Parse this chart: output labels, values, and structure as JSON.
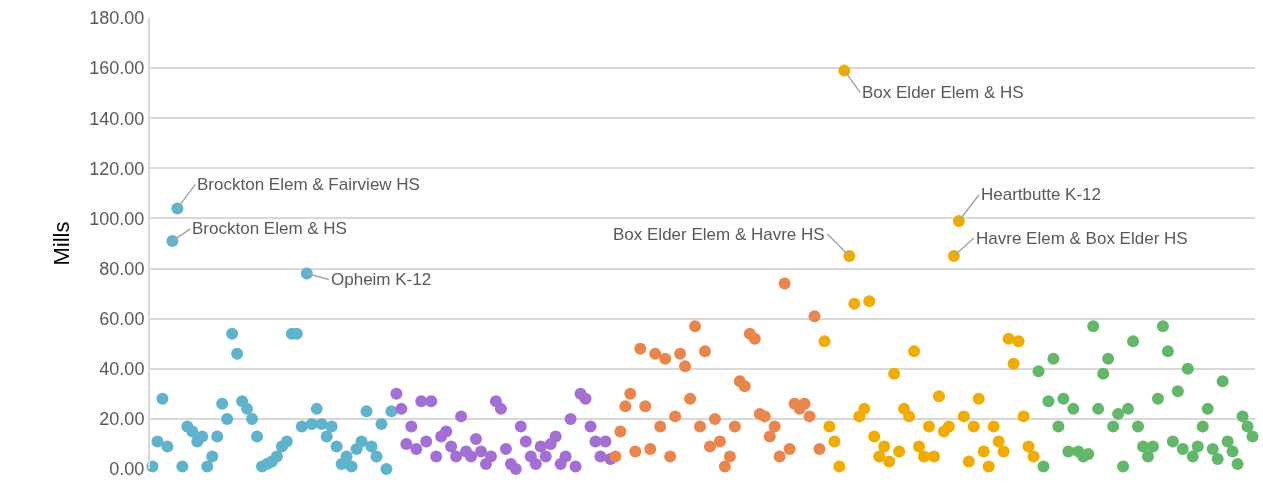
{
  "chart_data": {
    "type": "scatter",
    "ylabel": "Mills",
    "marker": "circle",
    "grid": "y",
    "legend": false,
    "tick_labels": "y",
    "ylim": [
      0,
      180
    ],
    "yticks": [
      {
        "value": 0,
        "label": "0.00"
      },
      {
        "value": 20,
        "label": "20.00"
      },
      {
        "value": 40,
        "label": "40.00"
      },
      {
        "value": 60,
        "label": "60.00"
      },
      {
        "value": 80,
        "label": "80.00"
      },
      {
        "value": 100,
        "label": "100.00"
      },
      {
        "value": 120,
        "label": "120.00"
      },
      {
        "value": 140,
        "label": "140.00"
      },
      {
        "value": 160,
        "label": "160.00"
      },
      {
        "value": 180,
        "label": "180.00"
      }
    ],
    "categories": [
      null,
      null,
      null,
      null,
      null,
      null,
      null,
      null,
      null,
      null,
      null,
      null,
      null,
      null,
      null,
      null,
      null,
      null,
      null,
      null,
      null,
      null,
      null,
      null,
      null,
      null,
      null,
      null,
      null,
      null,
      null,
      null,
      null,
      null,
      null,
      null,
      null,
      null,
      null,
      null,
      null,
      null,
      null,
      null,
      null,
      null,
      null,
      null,
      null,
      null,
      null,
      null,
      null,
      null,
      null,
      null,
      null,
      null,
      null,
      null,
      null,
      null,
      null,
      null,
      null,
      null,
      null,
      null,
      null,
      null,
      null,
      null,
      null,
      null,
      null,
      null,
      null,
      null,
      null,
      null,
      null,
      null,
      null,
      null,
      null,
      null,
      null,
      null,
      null,
      null,
      null,
      null,
      null,
      null,
      null,
      null,
      null,
      null,
      null,
      null,
      null,
      null,
      null,
      null,
      null,
      null,
      null,
      null,
      null,
      null,
      null,
      null,
      null,
      null,
      null,
      null,
      null,
      null,
      null,
      null,
      null,
      null,
      null,
      null,
      null,
      null,
      null,
      null,
      null,
      null,
      null,
      null,
      null,
      null,
      null,
      null,
      null,
      null,
      null,
      null,
      null,
      null,
      null,
      null,
      null,
      null,
      null,
      null,
      null,
      null,
      null,
      null,
      null,
      null,
      null,
      null,
      null,
      null,
      null,
      null,
      null,
      null,
      null,
      null,
      null,
      null,
      null,
      null,
      null,
      null,
      null,
      null,
      null,
      null,
      null,
      null,
      null,
      null,
      null,
      null,
      null,
      null,
      null,
      null,
      null,
      null,
      null,
      null,
      null,
      null,
      null,
      null,
      null,
      null,
      null,
      null,
      null,
      null,
      null,
      null,
      null,
      null,
      null,
      null,
      null,
      null,
      null,
      null,
      null,
      null,
      null,
      null,
      null,
      null,
      null,
      null,
      null,
      null,
      null,
      null,
      null,
      null
    ],
    "series": [
      {
        "color": "#5fb4cb",
        "values": [
          1,
          11,
          28,
          9,
          91,
          104,
          1,
          17,
          15,
          11,
          13,
          1,
          5,
          13,
          26,
          20,
          54,
          46,
          27,
          24,
          20,
          13,
          1,
          2,
          3,
          5,
          9,
          11,
          54,
          54,
          17,
          78,
          18,
          24,
          18,
          13,
          17,
          9,
          2,
          5,
          1,
          8,
          11,
          23,
          9,
          5,
          18,
          0,
          23,
          null,
          null,
          null,
          null,
          null,
          null,
          null,
          null,
          null,
          null,
          null,
          null,
          null,
          null,
          null,
          null,
          null,
          null,
          null,
          null,
          null,
          null,
          null,
          null,
          null,
          null,
          null,
          null,
          null,
          null,
          null,
          null,
          null,
          null,
          null,
          null,
          null,
          null,
          null,
          null,
          null,
          null,
          null,
          null,
          null,
          null,
          null,
          null,
          null,
          null,
          null,
          null,
          null,
          null,
          null,
          null,
          null,
          null,
          null,
          null,
          null,
          null,
          null,
          null,
          null,
          null,
          null,
          null,
          null,
          null,
          null,
          null,
          null,
          null,
          null,
          null,
          null,
          null,
          null,
          null,
          null,
          null,
          null,
          null,
          null,
          null,
          null,
          null,
          null,
          null,
          null,
          null,
          null,
          null,
          null,
          null,
          null,
          null,
          null,
          null,
          null,
          null,
          null,
          null,
          null,
          null,
          null,
          null,
          null,
          null,
          null,
          null,
          null,
          null,
          null,
          null,
          null,
          null,
          null,
          null,
          null,
          null,
          null,
          null,
          null,
          null,
          null,
          null,
          null,
          null,
          null,
          null,
          null,
          null,
          null,
          null,
          null,
          null,
          null,
          null,
          null,
          null,
          null,
          null,
          null,
          null,
          null,
          null,
          null,
          null,
          null,
          null,
          null,
          null,
          null,
          null,
          null,
          null,
          null,
          null,
          null,
          null,
          null,
          null,
          null,
          null,
          null,
          null,
          null,
          null,
          null,
          null,
          null
        ],
        "value_labels": [
          null,
          null,
          null,
          null,
          "Brockton Elem & HS",
          "Brockton Elem & Fairview HS",
          null,
          null,
          null,
          null,
          null,
          null,
          null,
          null,
          null,
          null,
          null,
          null,
          null,
          null,
          null,
          null,
          null,
          null,
          null,
          null,
          null,
          null,
          null,
          null,
          null,
          "Opheim K-12",
          null,
          null,
          null,
          null,
          null,
          null,
          null,
          null,
          null,
          null,
          null,
          null,
          null,
          null,
          null,
          null,
          null,
          null,
          null,
          null,
          null,
          null,
          null,
          null,
          null,
          null,
          null,
          null,
          null,
          null,
          null,
          null,
          null,
          null,
          null,
          null,
          null,
          null,
          null,
          null,
          null,
          null,
          null,
          null,
          null,
          null,
          null,
          null,
          null,
          null,
          null,
          null,
          null,
          null,
          null,
          null,
          null,
          null,
          null,
          null,
          null,
          null,
          null,
          null,
          null,
          null,
          null,
          null,
          null,
          null,
          null,
          null,
          null,
          null,
          null,
          null,
          null,
          null,
          null,
          null,
          null,
          null,
          null,
          null,
          null,
          null,
          null,
          null,
          null,
          null,
          null,
          null,
          null,
          null,
          null,
          null,
          null,
          null,
          null,
          null,
          null,
          null,
          null,
          null,
          null,
          null,
          null,
          null,
          null,
          null,
          null,
          null,
          null,
          null,
          null,
          null,
          null,
          null,
          null,
          null,
          null,
          null,
          null,
          null,
          null,
          null,
          null,
          null,
          null,
          null,
          null,
          null,
          null,
          null,
          null,
          null,
          null,
          null,
          null,
          null,
          null,
          null,
          null,
          null,
          null,
          null,
          null,
          null,
          null,
          null,
          null,
          null,
          null,
          null,
          null,
          null,
          null,
          null,
          null,
          null,
          null,
          null,
          null,
          null,
          null,
          null,
          null,
          null,
          null,
          null,
          null,
          null,
          null,
          null,
          null,
          null,
          null,
          null,
          null,
          null,
          null,
          null,
          null,
          null,
          null,
          null,
          null,
          null,
          null,
          null
        ]
      },
      {
        "color": "#a46fd4",
        "values": [
          null,
          null,
          null,
          null,
          null,
          null,
          null,
          null,
          null,
          null,
          null,
          null,
          null,
          null,
          null,
          null,
          null,
          null,
          null,
          null,
          null,
          null,
          null,
          null,
          null,
          null,
          null,
          null,
          null,
          null,
          null,
          null,
          null,
          null,
          null,
          null,
          null,
          null,
          null,
          null,
          null,
          null,
          null,
          null,
          null,
          null,
          null,
          null,
          null,
          30,
          24,
          10,
          17,
          8,
          27,
          11,
          27,
          5,
          13,
          15,
          9,
          5,
          21,
          7,
          5,
          12,
          7,
          2,
          5,
          27,
          24,
          8,
          2,
          0,
          17,
          11,
          5,
          2,
          9,
          5,
          10,
          13,
          2,
          5,
          20,
          1,
          30,
          28,
          17,
          11,
          5,
          11,
          4,
          null,
          null,
          null,
          null,
          null,
          null,
          null,
          null,
          null,
          null,
          null,
          null,
          null,
          null,
          null,
          null,
          null,
          null,
          null,
          null,
          null,
          null,
          null,
          null,
          null,
          null,
          null,
          null,
          null,
          null,
          null,
          null,
          null,
          null,
          null,
          null,
          null,
          null,
          null,
          null,
          null,
          null,
          null,
          null,
          null,
          null,
          null,
          null,
          null,
          null,
          null,
          null,
          null,
          null,
          null,
          null,
          null,
          null,
          null,
          null,
          null,
          null,
          null,
          null,
          null,
          null,
          null,
          null,
          null,
          null,
          null,
          null,
          null,
          null,
          null,
          null,
          null,
          null,
          null,
          null,
          null,
          null,
          null,
          null,
          null,
          null,
          null,
          null,
          null,
          null,
          null,
          null,
          null,
          null,
          null,
          null,
          null,
          null,
          null,
          null,
          null,
          null,
          null,
          null,
          null,
          null,
          null,
          null,
          null,
          null,
          null,
          null,
          null,
          null,
          null,
          null,
          null,
          null,
          null,
          null,
          null,
          null,
          null,
          null,
          null,
          null,
          null,
          null,
          null
        ]
      },
      {
        "color": "#e8864e",
        "values": [
          null,
          null,
          null,
          null,
          null,
          null,
          null,
          null,
          null,
          null,
          null,
          null,
          null,
          null,
          null,
          null,
          null,
          null,
          null,
          null,
          null,
          null,
          null,
          null,
          null,
          null,
          null,
          null,
          null,
          null,
          null,
          null,
          null,
          null,
          null,
          null,
          null,
          null,
          null,
          null,
          null,
          null,
          null,
          null,
          null,
          null,
          null,
          null,
          null,
          null,
          null,
          null,
          null,
          null,
          null,
          null,
          null,
          null,
          null,
          null,
          null,
          null,
          null,
          null,
          null,
          null,
          null,
          null,
          null,
          null,
          null,
          null,
          null,
          null,
          null,
          null,
          null,
          null,
          null,
          null,
          null,
          null,
          null,
          null,
          null,
          null,
          null,
          null,
          null,
          null,
          null,
          null,
          null,
          5,
          15,
          25,
          30,
          7,
          48,
          25,
          8,
          46,
          17,
          44,
          5,
          21,
          46,
          41,
          28,
          57,
          17,
          47,
          9,
          20,
          11,
          1,
          5,
          17,
          35,
          33,
          54,
          52,
          22,
          21,
          13,
          17,
          5,
          74,
          8,
          26,
          24,
          26,
          21,
          61,
          8,
          null,
          null,
          null,
          null,
          null,
          null,
          null,
          null,
          null,
          null,
          null,
          null,
          null,
          null,
          null,
          null,
          null,
          null,
          null,
          null,
          null,
          null,
          null,
          null,
          null,
          null,
          null,
          null,
          null,
          null,
          null,
          null,
          null,
          null,
          null,
          null,
          null,
          null,
          null,
          null,
          null,
          null,
          null,
          null,
          null,
          null,
          null,
          null,
          null,
          null,
          null,
          null,
          null,
          null,
          null,
          null,
          null,
          null,
          null,
          null,
          null,
          null,
          null,
          null,
          null,
          null,
          null,
          null,
          null,
          null,
          null,
          null,
          null,
          null,
          null,
          null,
          null,
          null,
          null,
          null,
          null,
          null,
          null,
          null,
          null,
          null,
          null
        ]
      },
      {
        "color": "#f0ad00",
        "values": [
          null,
          null,
          null,
          null,
          null,
          null,
          null,
          null,
          null,
          null,
          null,
          null,
          null,
          null,
          null,
          null,
          null,
          null,
          null,
          null,
          null,
          null,
          null,
          null,
          null,
          null,
          null,
          null,
          null,
          null,
          null,
          null,
          null,
          null,
          null,
          null,
          null,
          null,
          null,
          null,
          null,
          null,
          null,
          null,
          null,
          null,
          null,
          null,
          null,
          null,
          null,
          null,
          null,
          null,
          null,
          null,
          null,
          null,
          null,
          null,
          null,
          null,
          null,
          null,
          null,
          null,
          null,
          null,
          null,
          null,
          null,
          null,
          null,
          null,
          null,
          null,
          null,
          null,
          null,
          null,
          null,
          null,
          null,
          null,
          null,
          null,
          null,
          null,
          null,
          null,
          null,
          null,
          null,
          null,
          null,
          null,
          null,
          null,
          null,
          null,
          null,
          null,
          null,
          null,
          null,
          null,
          null,
          null,
          null,
          null,
          null,
          null,
          null,
          null,
          null,
          null,
          null,
          null,
          null,
          null,
          null,
          null,
          null,
          null,
          null,
          null,
          null,
          null,
          null,
          null,
          null,
          null,
          null,
          null,
          null,
          51,
          17,
          11,
          1,
          159,
          85,
          66,
          21,
          24,
          67,
          13,
          5,
          9,
          3,
          38,
          7,
          24,
          21,
          47,
          9,
          5,
          17,
          5,
          29,
          15,
          17,
          85,
          99,
          21,
          3,
          17,
          28,
          7,
          1,
          17,
          11,
          7,
          52,
          42,
          51,
          21,
          9,
          5,
          null,
          null,
          null,
          null,
          null,
          null,
          null,
          null,
          null,
          null,
          null,
          null,
          null,
          null,
          null,
          null,
          null,
          null,
          null,
          null,
          null,
          null,
          null,
          null,
          null,
          null,
          null,
          null,
          null,
          null,
          null,
          null,
          null,
          null,
          null,
          null,
          null,
          null,
          null,
          null,
          null,
          null,
          null,
          null
        ],
        "value_labels": [
          null,
          null,
          null,
          null,
          null,
          null,
          null,
          null,
          null,
          null,
          null,
          null,
          null,
          null,
          null,
          null,
          null,
          null,
          null,
          null,
          null,
          null,
          null,
          null,
          null,
          null,
          null,
          null,
          null,
          null,
          null,
          null,
          null,
          null,
          null,
          null,
          null,
          null,
          null,
          null,
          null,
          null,
          null,
          null,
          null,
          null,
          null,
          null,
          null,
          null,
          null,
          null,
          null,
          null,
          null,
          null,
          null,
          null,
          null,
          null,
          null,
          null,
          null,
          null,
          null,
          null,
          null,
          null,
          null,
          null,
          null,
          null,
          null,
          null,
          null,
          null,
          null,
          null,
          null,
          null,
          null,
          null,
          null,
          null,
          null,
          null,
          null,
          null,
          null,
          null,
          null,
          null,
          null,
          null,
          null,
          null,
          null,
          null,
          null,
          null,
          null,
          null,
          null,
          null,
          null,
          null,
          null,
          null,
          null,
          null,
          null,
          null,
          null,
          null,
          null,
          null,
          null,
          null,
          null,
          null,
          null,
          null,
          null,
          null,
          null,
          null,
          null,
          null,
          null,
          null,
          null,
          null,
          null,
          null,
          null,
          null,
          null,
          null,
          null,
          "Box Elder Elem & HS",
          "Box Elder Elem & Havre HS",
          null,
          null,
          null,
          null,
          null,
          null,
          null,
          null,
          null,
          null,
          null,
          null,
          null,
          null,
          null,
          null,
          null,
          null,
          null,
          null,
          "Havre Elem & Box Elder HS",
          "Heartbutte K-12",
          null,
          null,
          null,
          null,
          null,
          null,
          null,
          null,
          null,
          null,
          null,
          null,
          null,
          null,
          null,
          null,
          null,
          null,
          null,
          null,
          null,
          null,
          null,
          null,
          null,
          null,
          null,
          null,
          null,
          null,
          null,
          null,
          null,
          null,
          null,
          null,
          null,
          null,
          null,
          null,
          null,
          null,
          null,
          null,
          null,
          null,
          null,
          null,
          null,
          null,
          null,
          null,
          null,
          null,
          null,
          null,
          null,
          null,
          null
        ]
      },
      {
        "color": "#63b76a",
        "values": [
          null,
          null,
          null,
          null,
          null,
          null,
          null,
          null,
          null,
          null,
          null,
          null,
          null,
          null,
          null,
          null,
          null,
          null,
          null,
          null,
          null,
          null,
          null,
          null,
          null,
          null,
          null,
          null,
          null,
          null,
          null,
          null,
          null,
          null,
          null,
          null,
          null,
          null,
          null,
          null,
          null,
          null,
          null,
          null,
          null,
          null,
          null,
          null,
          null,
          null,
          null,
          null,
          null,
          null,
          null,
          null,
          null,
          null,
          null,
          null,
          null,
          null,
          null,
          null,
          null,
          null,
          null,
          null,
          null,
          null,
          null,
          null,
          null,
          null,
          null,
          null,
          null,
          null,
          null,
          null,
          null,
          null,
          null,
          null,
          null,
          null,
          null,
          null,
          null,
          null,
          null,
          null,
          null,
          null,
          null,
          null,
          null,
          null,
          null,
          null,
          null,
          null,
          null,
          null,
          null,
          null,
          null,
          null,
          null,
          null,
          null,
          null,
          null,
          null,
          null,
          null,
          null,
          null,
          null,
          null,
          null,
          null,
          null,
          null,
          null,
          null,
          null,
          null,
          null,
          null,
          null,
          null,
          null,
          null,
          null,
          null,
          null,
          null,
          null,
          null,
          null,
          null,
          null,
          null,
          null,
          null,
          null,
          null,
          null,
          null,
          null,
          null,
          null,
          null,
          null,
          null,
          null,
          null,
          null,
          null,
          null,
          null,
          null,
          null,
          null,
          null,
          null,
          null,
          null,
          null,
          null,
          null,
          null,
          null,
          null,
          null,
          null,
          null,
          39,
          1,
          27,
          44,
          17,
          28,
          7,
          24,
          7,
          5,
          6,
          57,
          24,
          38,
          44,
          17,
          22,
          1,
          24,
          51,
          17,
          9,
          5,
          9,
          28,
          57,
          47,
          11,
          31,
          8,
          40,
          5,
          9,
          17,
          24,
          8,
          4,
          35,
          11,
          7,
          2,
          21,
          17,
          13
        ]
      }
    ]
  }
}
